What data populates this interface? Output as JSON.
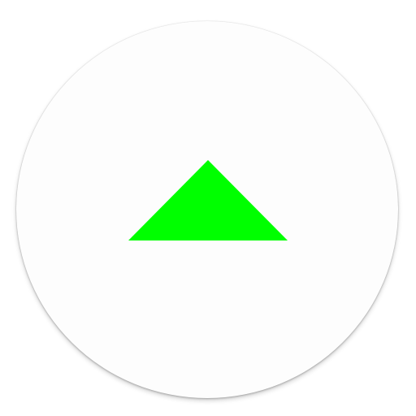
{
  "button": {
    "icon": "triangle-up-icon",
    "background_color": "#fdfdfd",
    "icon_color": "#00ff00",
    "label": ""
  }
}
